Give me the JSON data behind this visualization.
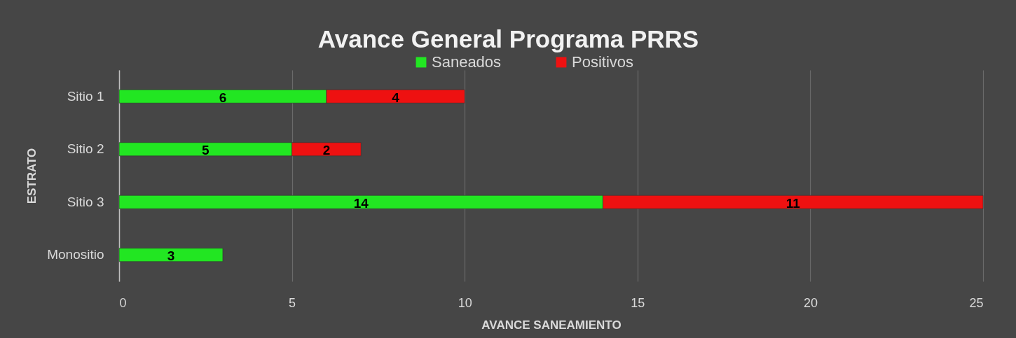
{
  "chart_data": {
    "type": "bar",
    "orientation": "horizontal",
    "stacked": true,
    "title": "Avance General Programa PRRS",
    "xlabel": "AVANCE SANEAMIENTO",
    "ylabel": "ESTRATO",
    "categories": [
      "Sitio 1",
      "Sitio 2",
      "Sitio 3",
      "Monositio"
    ],
    "series": [
      {
        "name": "Saneados",
        "color": "#22e622",
        "values": [
          6,
          5,
          14,
          3
        ]
      },
      {
        "name": "Positivos",
        "color": "#ee1111",
        "values": [
          4,
          2,
          11,
          null
        ]
      }
    ],
    "xlim": [
      0,
      25
    ],
    "xticks": [
      0,
      5,
      10,
      15,
      20,
      25
    ],
    "grid": "x",
    "legend": "top",
    "data_labels": true
  }
}
